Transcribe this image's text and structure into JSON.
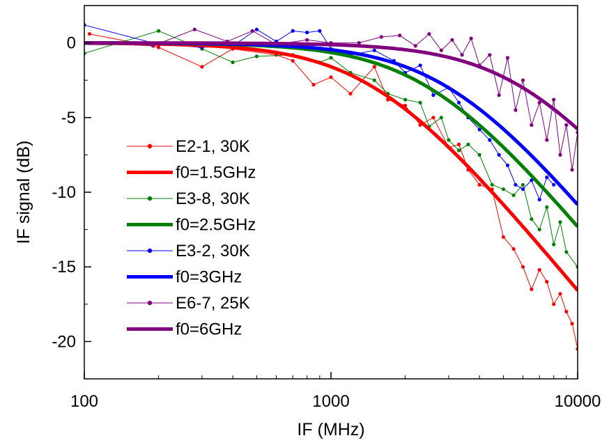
{
  "chart_data": {
    "type": "line",
    "xlabel": "IF (MHz)",
    "ylabel": "IF signal (dB)",
    "xscale": "log",
    "xlim": [
      100,
      10000
    ],
    "ylim": [
      -22.5,
      2.5
    ],
    "x_ticks": [
      {
        "value": 100,
        "label": "100"
      },
      {
        "value": 1000,
        "label": "1000"
      },
      {
        "value": 10000,
        "label": "10000"
      }
    ],
    "y_ticks": [
      {
        "value": 0,
        "label": "0"
      },
      {
        "value": -5,
        "label": "-5"
      },
      {
        "value": -10,
        "label": "-10"
      },
      {
        "value": -15,
        "label": "-15"
      },
      {
        "value": -20,
        "label": "-20"
      }
    ],
    "grid": false,
    "legend_position": "left",
    "series": [
      {
        "name": "E2-1, 30K",
        "kind": "measured",
        "color": "#ff0000",
        "x": [
          105,
          200,
          300,
          400,
          600,
          700,
          850,
          1000,
          1200,
          1500,
          1700,
          2000,
          2300,
          2600,
          3000,
          3300,
          3600,
          4000,
          4500,
          5000,
          5500,
          6000,
          6500,
          7000,
          7500,
          8000,
          8500,
          9000,
          9500,
          10000
        ],
        "y": [
          0.6,
          -0.3,
          -1.6,
          -0.4,
          -0.8,
          -1.2,
          -2.8,
          -2.3,
          -3.4,
          -1.6,
          -3.8,
          -4.2,
          -5.5,
          -5.0,
          -7.0,
          -6.8,
          -8.5,
          -9.5,
          -9.8,
          -13.0,
          -13.8,
          -15.0,
          -16.5,
          -15.2,
          -16.0,
          -17.5,
          -16.8,
          -18.0,
          -18.8,
          -20.5
        ]
      },
      {
        "name": "f0=1.5GHz",
        "kind": "fit",
        "color": "#ff0000",
        "f0": 1500
      },
      {
        "name": "E3-8, 30K",
        "kind": "measured",
        "color": "#008000",
        "x": [
          100,
          200,
          300,
          400,
          500,
          700,
          900,
          1000,
          1200,
          1500,
          1700,
          2000,
          2300,
          2500,
          2800,
          3000,
          3300,
          3600,
          4000,
          4500,
          5000,
          5500,
          6000,
          6500,
          7000,
          7500,
          8000,
          8500,
          9000,
          10000
        ],
        "y": [
          -0.7,
          0.8,
          -0.4,
          -1.3,
          -0.9,
          -0.8,
          -1.3,
          -1.0,
          -2.0,
          -2.5,
          -3.4,
          -3.8,
          -4.0,
          -5.6,
          -5.0,
          -6.5,
          -7.2,
          -6.8,
          -7.5,
          -9.5,
          -9.8,
          -10.2,
          -9.5,
          -11.8,
          -12.5,
          -11.0,
          -13.5,
          -12.0,
          -14.0,
          -15.0
        ]
      },
      {
        "name": "f0=2.5GHz",
        "kind": "fit",
        "color": "#008000",
        "f0": 2500
      },
      {
        "name": "E3-2, 30K",
        "kind": "measured",
        "color": "#0000ff",
        "x": [
          100,
          200,
          300,
          400,
          500,
          600,
          700,
          800,
          900,
          1000,
          1200,
          1500,
          1800,
          2000,
          2300,
          2600,
          3000,
          3300,
          3600,
          4000,
          4400,
          4800,
          5200,
          5600,
          6000,
          6500,
          7000,
          7500,
          8000
        ],
        "y": [
          1.2,
          -0.1,
          -0.3,
          -0.2,
          0.9,
          0.1,
          0.8,
          0.7,
          0.8,
          -0.4,
          -0.8,
          -0.5,
          -1.2,
          -2.0,
          -1.5,
          -3.5,
          -3.0,
          -4.0,
          -5.0,
          -5.8,
          -6.5,
          -7.5,
          -8.2,
          -9.5,
          -9.8,
          -9.2,
          -10.5,
          -9.0,
          -9.5
        ]
      },
      {
        "name": "f0=3GHz",
        "kind": "fit",
        "color": "#0000ff",
        "f0": 3000
      },
      {
        "name": "E6-7, 25K",
        "kind": "measured",
        "color": "#800080",
        "x": [
          100,
          190,
          280,
          380,
          480,
          600,
          800,
          1000,
          1300,
          1600,
          1900,
          2200,
          2500,
          2800,
          3100,
          3400,
          3700,
          4000,
          4400,
          4800,
          5200,
          5600,
          6000,
          6500,
          7000,
          7500,
          8000,
          8500,
          9000,
          9500,
          10000
        ],
        "y": [
          0.0,
          -0.2,
          0.9,
          0.1,
          0.8,
          -0.1,
          0.2,
          0.0,
          0.0,
          0.4,
          0.5,
          -0.2,
          0.6,
          -0.5,
          0.2,
          -0.8,
          0.3,
          -1.5,
          -0.8,
          -3.5,
          -1.0,
          -4.5,
          -2.5,
          -5.5,
          -4.0,
          -6.5,
          -3.8,
          -7.5,
          -5.5,
          -8.5,
          -6.0
        ]
      },
      {
        "name": "f0=6GHz",
        "kind": "fit",
        "color": "#800080",
        "f0": 6000
      }
    ]
  }
}
